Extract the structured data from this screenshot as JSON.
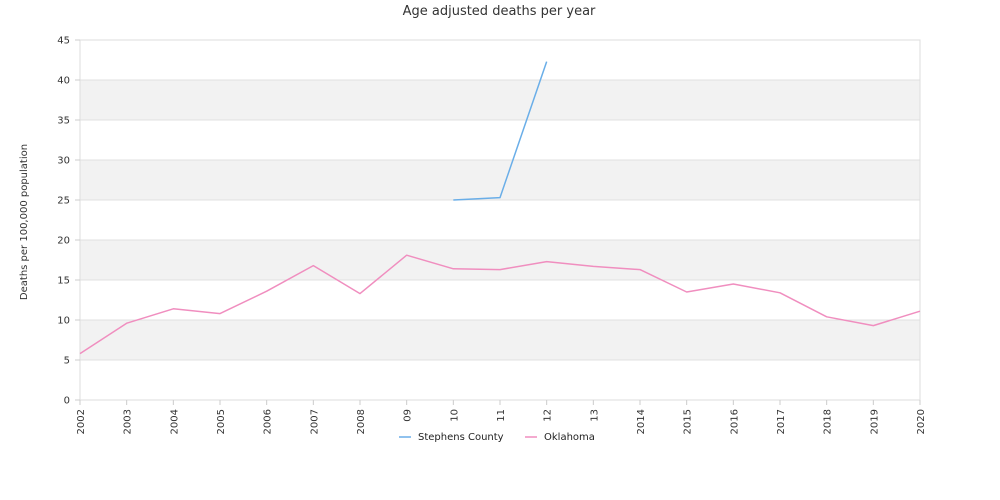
{
  "chart_data": {
    "type": "line",
    "title": "Age adjusted deaths per year",
    "xlabel": "",
    "ylabel": "Deaths per 100,000 population",
    "categories": [
      "2002",
      "2003",
      "2004",
      "2005",
      "2006",
      "2007",
      "2008",
      "09",
      "10",
      "11",
      "12",
      "13",
      "2014",
      "2015",
      "2016",
      "2017",
      "2018",
      "2019",
      "2020"
    ],
    "ylim": [
      0,
      45
    ],
    "yticks": [
      0,
      5,
      10,
      15,
      20,
      25,
      30,
      35,
      40,
      45
    ],
    "grid": "horizontal bands",
    "legend_position": "bottom",
    "series": [
      {
        "name": "Stephens County",
        "color": "#6aaee8",
        "values": [
          null,
          null,
          null,
          null,
          null,
          null,
          null,
          null,
          25.0,
          25.3,
          42.3,
          null,
          null,
          null,
          null,
          null,
          null,
          null,
          null
        ]
      },
      {
        "name": "Oklahoma",
        "color": "#f08ebf",
        "values": [
          5.8,
          9.6,
          11.4,
          10.8,
          13.6,
          16.8,
          13.3,
          18.1,
          16.4,
          16.3,
          17.3,
          16.7,
          16.3,
          13.5,
          14.5,
          13.4,
          10.4,
          9.3,
          11.1
        ]
      }
    ]
  }
}
